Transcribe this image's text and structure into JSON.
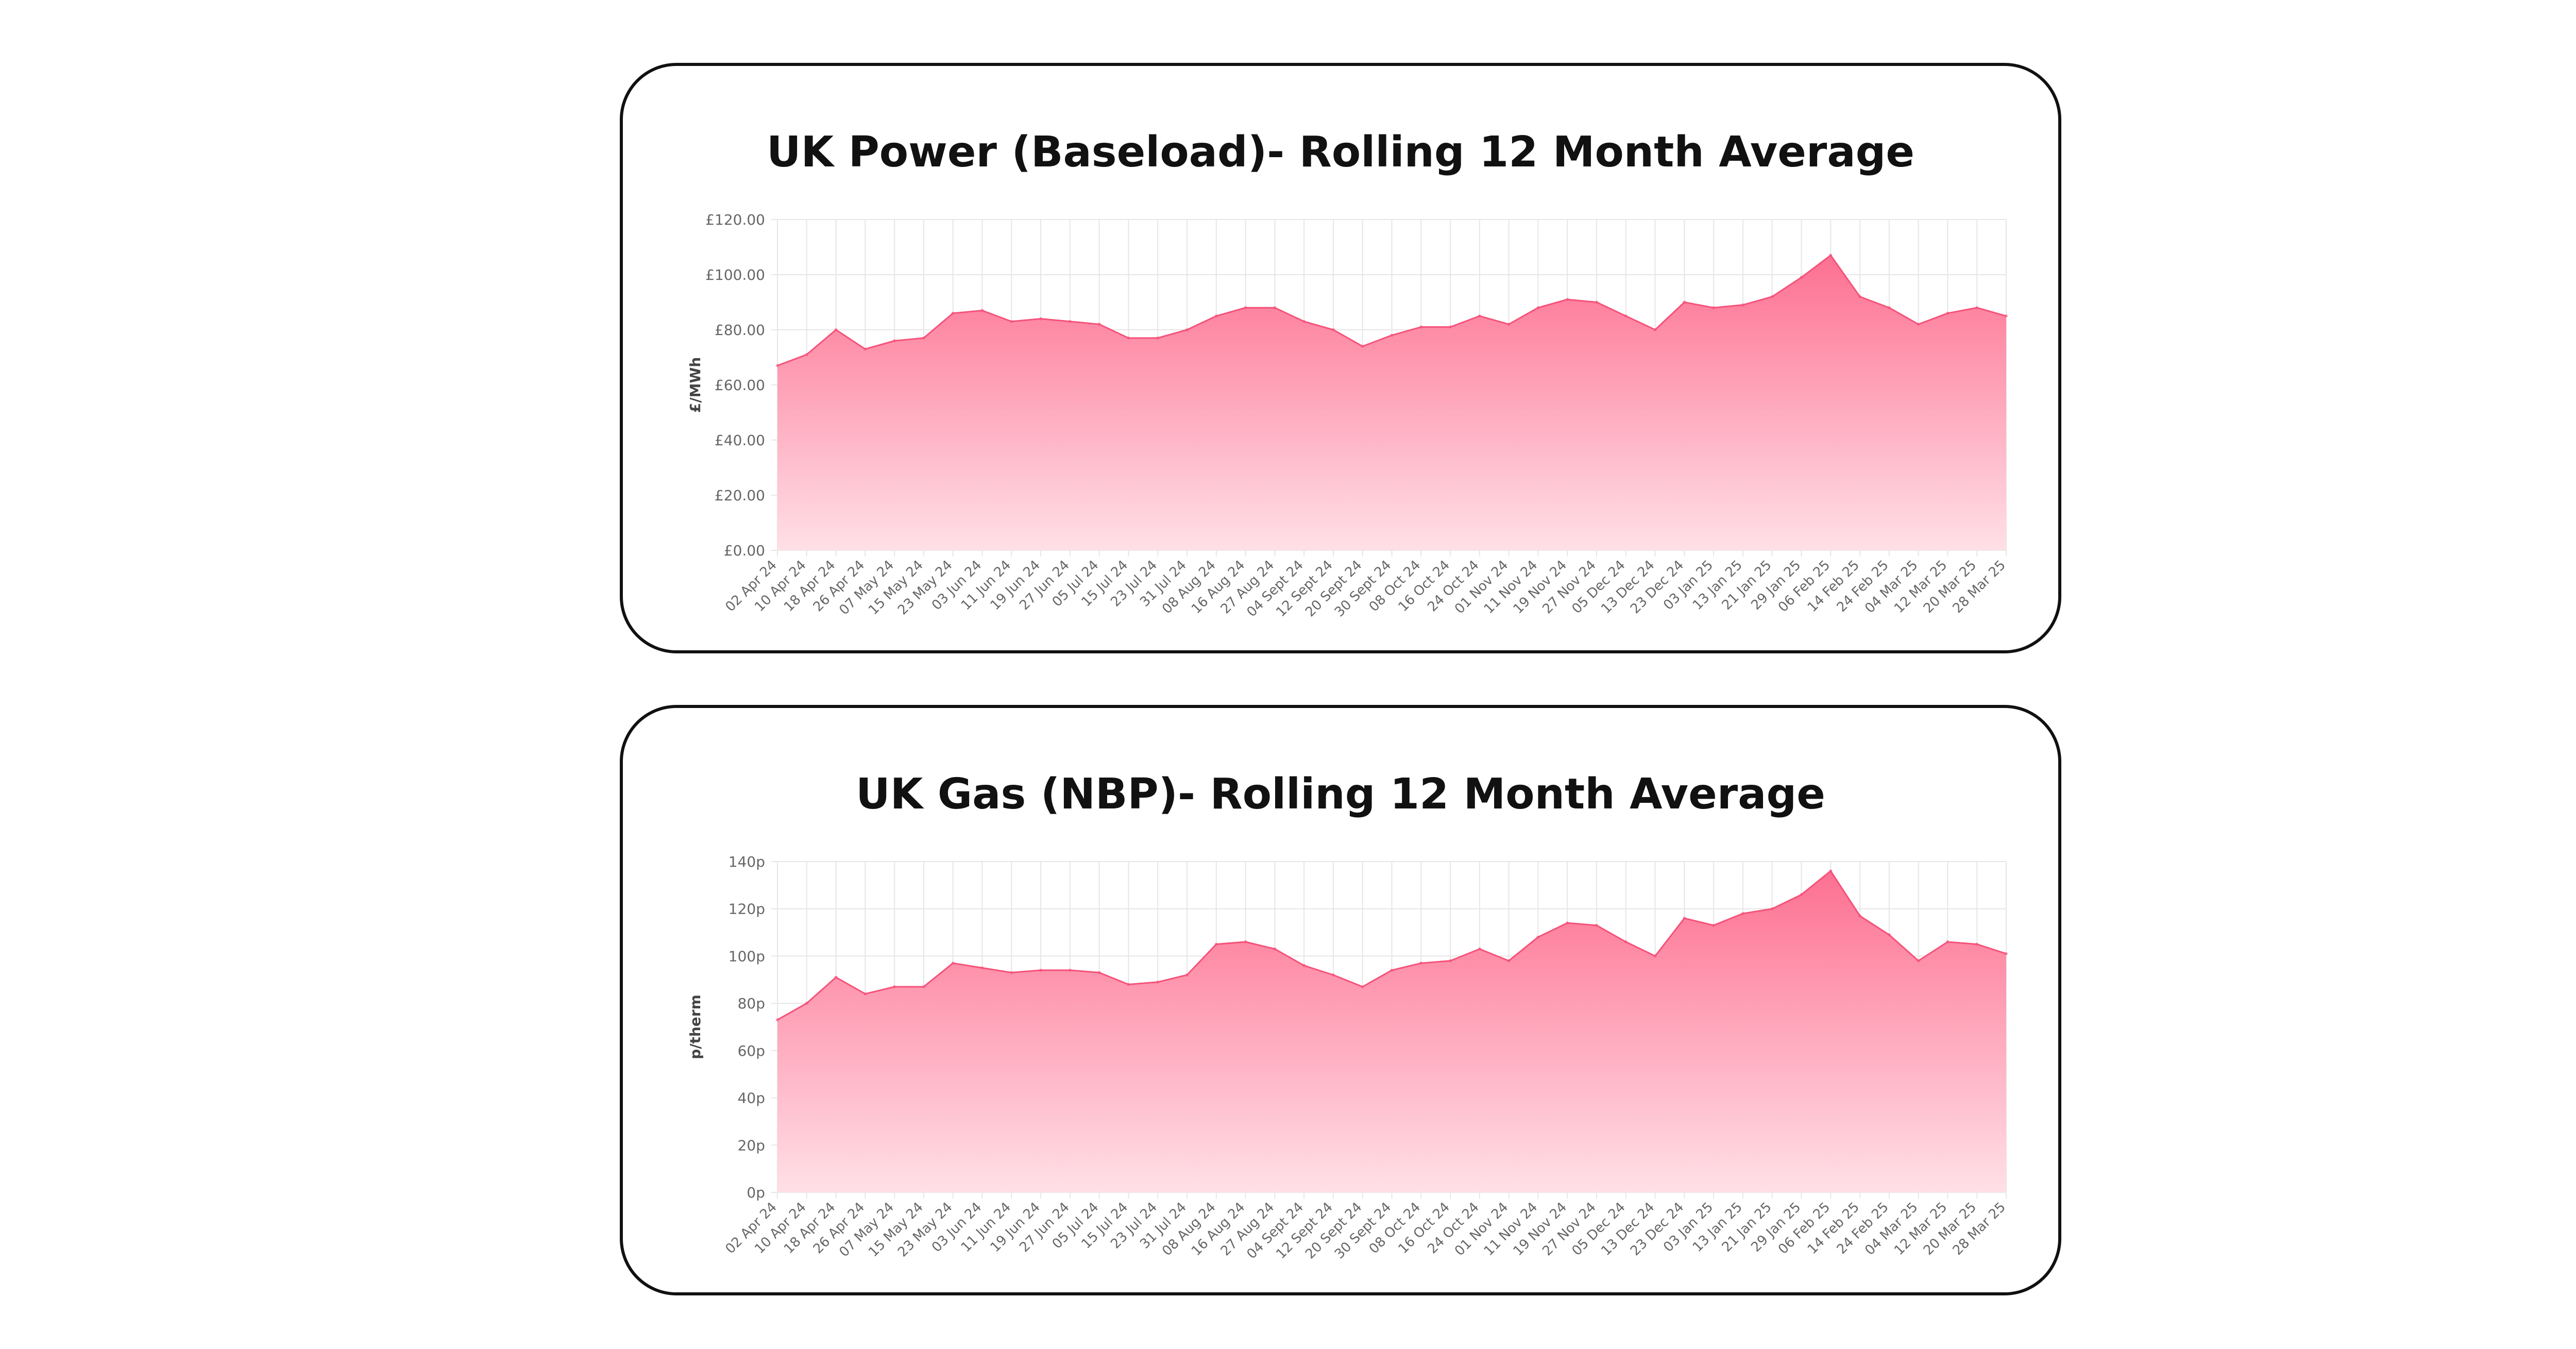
{
  "colors": {
    "area_top": "#fd7091",
    "area_bottom": "#ffe0e7",
    "line": "#f5527a",
    "grid": "#e6e6e6",
    "axis_text": "#666666",
    "border": "#111111"
  },
  "chart_data": [
    {
      "type": "area",
      "title": "UK Power (Baseload)- Rolling 12 Month Average",
      "xlabel": "",
      "ylabel": "£/MWh",
      "ylim": [
        0,
        120
      ],
      "yticks": [
        0,
        20,
        40,
        60,
        80,
        100,
        120
      ],
      "ytick_labels": [
        "£0.00",
        "£20.00",
        "£40.00",
        "£60.00",
        "£80.00",
        "£100.00",
        "£120.00"
      ],
      "grid": true,
      "categories": [
        "02 Apr 24",
        "10 Apr 24",
        "18 Apr 24",
        "26 Apr 24",
        "07 May 24",
        "15 May 24",
        "23 May 24",
        "03 Jun 24",
        "11 Jun 24",
        "19 Jun 24",
        "27 Jun 24",
        "05 Jul 24",
        "15 Jul 24",
        "23 Jul 24",
        "31 Jul 24",
        "08 Aug 24",
        "16 Aug 24",
        "27 Aug 24",
        "04 Sept 24",
        "12 Sept 24",
        "20 Sept 24",
        "30 Sept 24",
        "08 Oct 24",
        "16 Oct 24",
        "24 Oct 24",
        "01 Nov 24",
        "11 Nov 24",
        "19 Nov 24",
        "27 Nov 24",
        "05 Dec 24",
        "13 Dec 24",
        "23 Dec 24",
        "03 Jan 25",
        "13 Jan 25",
        "21 Jan 25",
        "29 Jan 25",
        "06 Feb 25",
        "14 Feb 25",
        "24 Feb 25",
        "04 Mar 25",
        "12 Mar 25",
        "20 Mar 25",
        "28 Mar 25"
      ],
      "values": [
        67,
        71,
        80,
        73,
        76,
        77,
        86,
        87,
        83,
        84,
        83,
        82,
        77,
        77,
        80,
        85,
        88,
        88,
        83,
        80,
        74,
        78,
        81,
        81,
        85,
        82,
        88,
        91,
        90,
        85,
        80,
        90,
        88,
        89,
        92,
        99,
        107,
        92,
        88,
        82,
        86,
        88,
        85
      ]
    },
    {
      "type": "area",
      "title": "UK Gas (NBP)- Rolling 12 Month Average",
      "xlabel": "",
      "ylabel": "p/therm",
      "ylim": [
        0,
        140
      ],
      "yticks": [
        0,
        20,
        40,
        60,
        80,
        100,
        120,
        140
      ],
      "ytick_labels": [
        "0p",
        "20p",
        "40p",
        "60p",
        "80p",
        "100p",
        "120p",
        "140p"
      ],
      "grid": true,
      "categories": [
        "02 Apr 24",
        "10 Apr 24",
        "18 Apr 24",
        "26 Apr 24",
        "07 May 24",
        "15 May 24",
        "23 May 24",
        "03 Jun 24",
        "11 Jun 24",
        "19 Jun 24",
        "27 Jun 24",
        "05 Jul 24",
        "15 Jul 24",
        "23 Jul 24",
        "31 Jul 24",
        "08 Aug 24",
        "16 Aug 24",
        "27 Aug 24",
        "04 Sept 24",
        "12 Sept 24",
        "20 Sept 24",
        "30 Sept 24",
        "08 Oct 24",
        "16 Oct 24",
        "24 Oct 24",
        "01 Nov 24",
        "11 Nov 24",
        "19 Nov 24",
        "27 Nov 24",
        "05 Dec 24",
        "13 Dec 24",
        "23 Dec 24",
        "03 Jan 25",
        "13 Jan 25",
        "21 Jan 25",
        "29 Jan 25",
        "06 Feb 25",
        "14 Feb 25",
        "24 Feb 25",
        "04 Mar 25",
        "12 Mar 25",
        "20 Mar 25",
        "28 Mar 25"
      ],
      "values": [
        73,
        80,
        91,
        84,
        87,
        87,
        97,
        95,
        93,
        94,
        94,
        93,
        88,
        89,
        92,
        105,
        106,
        103,
        96,
        92,
        87,
        94,
        97,
        98,
        103,
        98,
        108,
        114,
        113,
        106,
        100,
        116,
        113,
        118,
        120,
        126,
        136,
        117,
        109,
        98,
        106,
        105,
        101
      ]
    }
  ]
}
